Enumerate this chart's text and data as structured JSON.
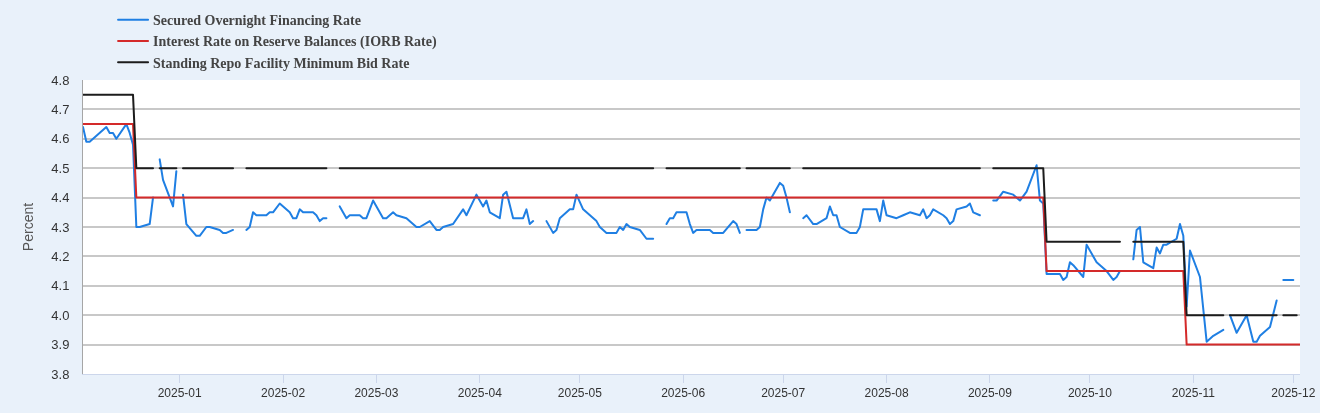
{
  "chart_data": {
    "type": "line",
    "ylabel": "Percent",
    "xlim": [
      "2024-12-03",
      "2025-12-03"
    ],
    "ylim": [
      3.8,
      4.8
    ],
    "xticks": [
      "2025-01",
      "2025-02",
      "2025-03",
      "2025-04",
      "2025-05",
      "2025-06",
      "2025-07",
      "2025-08",
      "2025-09",
      "2025-10",
      "2025-11",
      "2025-12"
    ],
    "yticks": [
      3.8,
      3.9,
      {
        "value": 4,
        "label": "4.0"
      },
      4.1,
      4.2,
      4.3,
      4.4,
      4.5,
      4.6,
      4.7,
      4.8
    ],
    "grid": "y",
    "legend": "top left",
    "series": [
      {
        "name": "Secured Overnight Financing Rate",
        "color": "#1f7fe3",
        "x": [
          "2024-12-03",
          "2024-12-04",
          "2024-12-05",
          "2024-12-10",
          "2024-12-11",
          "2024-12-12",
          "2024-12-13",
          "2024-12-16",
          "2024-12-17",
          "2024-12-18",
          "2024-12-19",
          "2024-12-20",
          "2024-12-23",
          "2024-12-24",
          "2024-12-25",
          "2024-12-26",
          "2024-12-27",
          "2024-12-30",
          "2024-12-31",
          "2025-01-01",
          "2025-01-02",
          "2025-01-03",
          "2025-01-06",
          "2025-01-07",
          "2025-01-09",
          "2025-01-10",
          "2025-01-13",
          "2025-01-14",
          "2025-01-15",
          "2025-01-17",
          "2025-01-20",
          "2025-01-21",
          "2025-01-22",
          "2025-01-23",
          "2025-01-24",
          "2025-01-27",
          "2025-01-28",
          "2025-01-29",
          "2025-01-31",
          "2025-02-03",
          "2025-02-04",
          "2025-02-05",
          "2025-02-06",
          "2025-02-07",
          "2025-02-10",
          "2025-02-11",
          "2025-02-12",
          "2025-02-13",
          "2025-02-14",
          "2025-02-17",
          "2025-02-18",
          "2025-02-20",
          "2025-02-21",
          "2025-02-24",
          "2025-02-25",
          "2025-02-26",
          "2025-02-28",
          "2025-03-03",
          "2025-03-04",
          "2025-03-06",
          "2025-03-07",
          "2025-03-10",
          "2025-03-13",
          "2025-03-14",
          "2025-03-17",
          "2025-03-19",
          "2025-03-20",
          "2025-03-21",
          "2025-03-24",
          "2025-03-27",
          "2025-03-28",
          "2025-03-31",
          "2025-04-02",
          "2025-04-03",
          "2025-04-04",
          "2025-04-07",
          "2025-04-08",
          "2025-04-09",
          "2025-04-11",
          "2025-04-14",
          "2025-04-15",
          "2025-04-16",
          "2025-04-17",
          "2025-04-18",
          "2025-04-21",
          "2025-04-23",
          "2025-04-24",
          "2025-04-25",
          "2025-04-28",
          "2025-04-29",
          "2025-04-30",
          "2025-05-02",
          "2025-05-06",
          "2025-05-07",
          "2025-05-09",
          "2025-05-12",
          "2025-05-13",
          "2025-05-14",
          "2025-05-15",
          "2025-05-16",
          "2025-05-19",
          "2025-05-21",
          "2025-05-23",
          "2025-05-26",
          "2025-05-27",
          "2025-05-28",
          "2025-05-29",
          "2025-05-30",
          "2025-06-02",
          "2025-06-03",
          "2025-06-04",
          "2025-06-05",
          "2025-06-09",
          "2025-06-10",
          "2025-06-13",
          "2025-06-16",
          "2025-06-17",
          "2025-06-18",
          "2025-06-19",
          "2025-06-20",
          "2025-06-23",
          "2025-06-24",
          "2025-06-25",
          "2025-06-26",
          "2025-06-27",
          "2025-06-30",
          "2025-07-01",
          "2025-07-02",
          "2025-07-03",
          "2025-07-04",
          "2025-07-07",
          "2025-07-08",
          "2025-07-10",
          "2025-07-11",
          "2025-07-14",
          "2025-07-15",
          "2025-07-16",
          "2025-07-17",
          "2025-07-18",
          "2025-07-21",
          "2025-07-23",
          "2025-07-24",
          "2025-07-25",
          "2025-07-29",
          "2025-07-30",
          "2025-07-31",
          "2025-08-01",
          "2025-08-04",
          "2025-08-06",
          "2025-08-08",
          "2025-08-11",
          "2025-08-12",
          "2025-08-13",
          "2025-08-14",
          "2025-08-15",
          "2025-08-18",
          "2025-08-19",
          "2025-08-20",
          "2025-08-21",
          "2025-08-22",
          "2025-08-25",
          "2025-08-26",
          "2025-08-27",
          "2025-08-29",
          "2025-09-01",
          "2025-09-02",
          "2025-09-03",
          "2025-09-05",
          "2025-09-08",
          "2025-09-10",
          "2025-09-12",
          "2025-09-15",
          "2025-09-16",
          "2025-09-17",
          "2025-09-18",
          "2025-09-22",
          "2025-09-23",
          "2025-09-24",
          "2025-09-25",
          "2025-09-26",
          "2025-09-29",
          "2025-09-30",
          "2025-10-02",
          "2025-10-03",
          "2025-10-06",
          "2025-10-08",
          "2025-10-09",
          "2025-10-10",
          "2025-10-13",
          "2025-10-14",
          "2025-10-15",
          "2025-10-16",
          "2025-10-17",
          "2025-10-20",
          "2025-10-21",
          "2025-10-22",
          "2025-10-23",
          "2025-10-24",
          "2025-10-27",
          "2025-10-28",
          "2025-10-29",
          "2025-10-30",
          "2025-10-31",
          "2025-11-03",
          "2025-11-05",
          "2025-11-07",
          "2025-11-10",
          "2025-11-11",
          "2025-11-12",
          "2025-11-14",
          "2025-11-17",
          "2025-11-19",
          "2025-11-20",
          "2025-11-21",
          "2025-11-24",
          "2025-11-26",
          "2025-11-27",
          "2025-11-28",
          "2025-12-01"
        ],
        "values": [
          4.64,
          4.59,
          4.59,
          4.64,
          4.62,
          4.62,
          4.6,
          4.65,
          4.62,
          4.58,
          4.3,
          4.3,
          4.31,
          4.4,
          null,
          4.53,
          4.46,
          4.37,
          4.49,
          null,
          4.41,
          4.31,
          4.27,
          4.27,
          4.3,
          4.3,
          4.29,
          4.28,
          4.28,
          4.29,
          null,
          4.29,
          4.3,
          4.35,
          4.34,
          4.34,
          4.35,
          4.35,
          4.38,
          4.35,
          4.33,
          4.33,
          4.36,
          4.35,
          4.35,
          4.34,
          4.32,
          4.33,
          4.33,
          null,
          4.37,
          4.33,
          4.34,
          4.34,
          4.33,
          4.33,
          4.39,
          4.33,
          4.33,
          4.35,
          4.34,
          4.33,
          4.3,
          4.3,
          4.32,
          4.29,
          4.29,
          4.3,
          4.31,
          4.36,
          4.34,
          4.41,
          4.37,
          4.39,
          4.35,
          4.33,
          4.41,
          4.42,
          4.33,
          4.33,
          4.36,
          4.31,
          4.32,
          null,
          4.32,
          4.28,
          4.29,
          4.33,
          4.36,
          4.36,
          4.41,
          4.36,
          4.32,
          4.3,
          4.28,
          4.28,
          4.3,
          4.29,
          4.31,
          4.3,
          4.29,
          4.26,
          4.26,
          null,
          4.31,
          4.33,
          4.33,
          4.35,
          4.35,
          4.31,
          4.28,
          4.29,
          4.29,
          4.28,
          4.28,
          4.32,
          4.31,
          4.28,
          null,
          4.29,
          4.29,
          4.3,
          4.36,
          4.4,
          4.39,
          4.45,
          4.44,
          4.4,
          4.35,
          null,
          4.33,
          4.34,
          4.31,
          4.31,
          4.33,
          4.37,
          4.34,
          4.34,
          4.3,
          4.28,
          4.28,
          4.3,
          4.36,
          4.36,
          4.32,
          4.39,
          4.34,
          4.33,
          4.34,
          4.35,
          4.34,
          4.36,
          4.33,
          4.34,
          4.36,
          4.34,
          4.33,
          4.31,
          4.32,
          4.36,
          4.37,
          4.38,
          4.35,
          4.34,
          null,
          4.39,
          4.39,
          4.42,
          4.41,
          4.39,
          4.42,
          4.51,
          4.39,
          4.38,
          4.14,
          4.14,
          4.12,
          4.13,
          4.18,
          4.17,
          4.13,
          4.24,
          4.2,
          4.18,
          4.15,
          4.12,
          4.13,
          4.15,
          null,
          4.19,
          4.29,
          4.3,
          4.18,
          4.16,
          4.23,
          4.21,
          4.24,
          4.24,
          4.26,
          4.31,
          4.27,
          4.03,
          4.22,
          4.13,
          3.91,
          3.93,
          3.95,
          null,
          4.0,
          3.94,
          4.0,
          3.91,
          3.91,
          3.93,
          3.96,
          4.05,
          null,
          4.12,
          4.12
        ]
      },
      {
        "name": "Interest Rate on Reserve Balances (IORB Rate)",
        "color": "#d42a2a",
        "x": [
          "2024-12-03",
          "2024-12-18",
          "2024-12-19",
          "2025-09-17",
          "2025-09-18",
          "2025-10-29",
          "2025-10-30",
          "2025-12-03"
        ],
        "values": [
          4.65,
          4.65,
          4.4,
          4.4,
          4.15,
          4.15,
          3.9,
          3.9
        ]
      },
      {
        "name": "Standing Repo Facility Minimum Bid Rate",
        "color": "#1c1c1c",
        "x": [
          "2024-12-03",
          "2024-12-18",
          "2024-12-19",
          "2024-12-24",
          "2024-12-25",
          "2024-12-26",
          "2024-12-31",
          "2025-01-01",
          "2025-01-02",
          "2025-01-17",
          "2025-01-20",
          "2025-01-21",
          "2025-02-14",
          "2025-02-17",
          "2025-02-18",
          "2025-05-23",
          "2025-05-26",
          "2025-05-27",
          "2025-06-18",
          "2025-06-19",
          "2025-06-20",
          "2025-07-03",
          "2025-07-04",
          "2025-07-07",
          "2025-08-29",
          "2025-09-01",
          "2025-09-02",
          "2025-09-17",
          "2025-09-18",
          "2025-10-10",
          "2025-10-13",
          "2025-10-14",
          "2025-10-29",
          "2025-10-30",
          "2025-11-10",
          "2025-11-11",
          "2025-11-12",
          "2025-11-26",
          "2025-11-27",
          "2025-11-28",
          "2025-12-02"
        ],
        "values": [
          4.75,
          4.75,
          4.5,
          4.5,
          null,
          4.5,
          4.5,
          null,
          4.5,
          4.5,
          null,
          4.5,
          4.5,
          null,
          4.5,
          4.5,
          null,
          4.5,
          4.5,
          null,
          4.5,
          4.5,
          null,
          4.5,
          4.5,
          null,
          4.5,
          4.5,
          4.25,
          4.25,
          null,
          4.25,
          4.25,
          4.0,
          4.0,
          null,
          4.0,
          4.0,
          null,
          4.0,
          4.0
        ]
      }
    ]
  }
}
